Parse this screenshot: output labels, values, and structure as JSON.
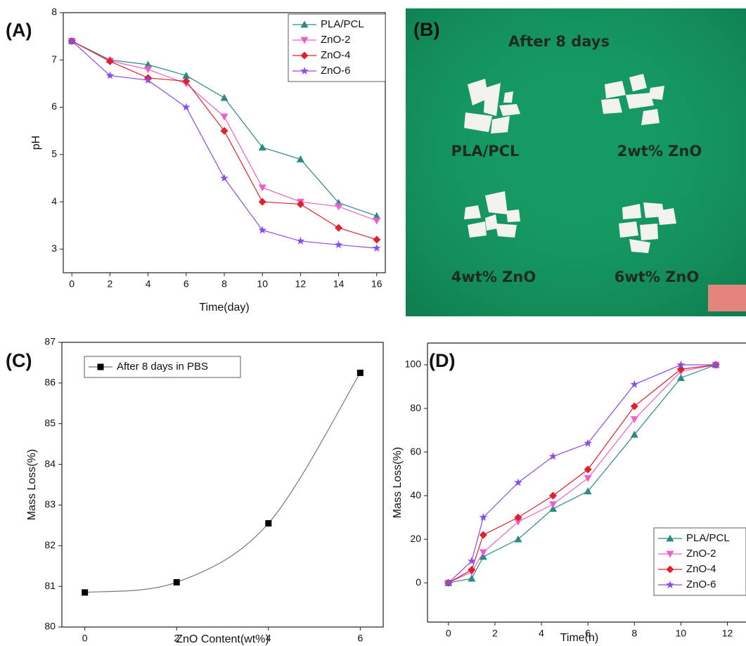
{
  "chart_data": [
    {
      "type": "line",
      "panel_label": "(A)",
      "x_label": "Time(day)",
      "y_label": "pH",
      "x": [
        0,
        2,
        4,
        6,
        8,
        10,
        12,
        14,
        16
      ],
      "xlim": [
        -0.45,
        16.45
      ],
      "xticks": [
        0,
        2,
        4,
        6,
        8,
        10,
        12,
        14,
        16
      ],
      "ylim": [
        2.5,
        8
      ],
      "yticks": [
        3,
        4,
        5,
        6,
        7,
        8
      ],
      "legend": "upper-right",
      "series": [
        {
          "name": "PLA/PCL",
          "color": "#2a8a84",
          "marker": "triangle-up",
          "values": [
            7.4,
            7.0,
            6.9,
            6.67,
            6.2,
            5.15,
            4.9,
            3.98,
            3.7
          ]
        },
        {
          "name": "ZnO-2",
          "color": "#ee5fc8",
          "marker": "triangle-down",
          "values": [
            7.4,
            6.98,
            6.8,
            6.5,
            5.8,
            4.3,
            4.0,
            3.9,
            3.6
          ]
        },
        {
          "name": "ZnO-4",
          "color": "#e0202a",
          "marker": "diamond",
          "values": [
            7.4,
            6.97,
            6.62,
            6.55,
            5.5,
            4.0,
            3.95,
            3.45,
            3.2
          ]
        },
        {
          "name": "ZnO-6",
          "color": "#8a4cf0",
          "marker": "star",
          "values": [
            7.4,
            6.67,
            6.57,
            6.0,
            4.5,
            3.4,
            3.17,
            3.09,
            3.02
          ]
        }
      ]
    },
    {
      "type": "line",
      "panel_label": "(C)",
      "x_label": "ZnO Content(wt%)",
      "y_label": "Mass Loss(%)",
      "x": [
        0,
        2,
        4,
        6
      ],
      "xlim": [
        -0.5,
        6.5
      ],
      "xticks": [
        0,
        2,
        4,
        6
      ],
      "ylim": [
        80,
        87
      ],
      "yticks": [
        80,
        81,
        82,
        83,
        84,
        85,
        86,
        87
      ],
      "legend": "upper-left",
      "smooth": true,
      "series": [
        {
          "name": "After 8 days in PBS",
          "color": "#000000",
          "line_color": "#777777",
          "marker": "square",
          "values": [
            80.85,
            81.1,
            82.55,
            86.25
          ]
        }
      ]
    },
    {
      "type": "line",
      "panel_label": "(D)",
      "x_label": "Time(h)",
      "y_label": "Mass Loss(%)",
      "x": [
        0,
        1,
        1.5,
        3,
        4.5,
        6,
        8,
        10,
        11.5
      ],
      "xlim": [
        -0.9,
        12.8
      ],
      "xticks": [
        0,
        2,
        4,
        6,
        8,
        10,
        12
      ],
      "ylim": [
        -18,
        110
      ],
      "yticks": [
        0,
        20,
        40,
        60,
        80,
        100
      ],
      "legend": "lower-right",
      "series": [
        {
          "name": "PLA/PCL",
          "color": "#2a8a84",
          "marker": "triangle-up",
          "values": [
            0,
            2,
            12,
            20,
            34,
            42,
            68,
            94,
            100
          ]
        },
        {
          "name": "ZnO-2",
          "color": "#ee5fc8",
          "marker": "triangle-down",
          "values": [
            0,
            5,
            14,
            28,
            36,
            48,
            75,
            97,
            100
          ]
        },
        {
          "name": "ZnO-4",
          "color": "#e0202a",
          "marker": "diamond",
          "values": [
            0,
            6,
            22,
            30,
            40,
            52,
            81,
            98,
            100
          ]
        },
        {
          "name": "ZnO-6",
          "color": "#8a4cf0",
          "marker": "star",
          "values": [
            0,
            10,
            30,
            46,
            58,
            64,
            91,
            100,
            100
          ]
        }
      ]
    }
  ],
  "photo": {
    "panel_label": "(B)",
    "caption": "After 8 days",
    "samples": [
      "PLA/PCL",
      "2wt% ZnO",
      "4wt% ZnO",
      "6wt% ZnO"
    ]
  }
}
